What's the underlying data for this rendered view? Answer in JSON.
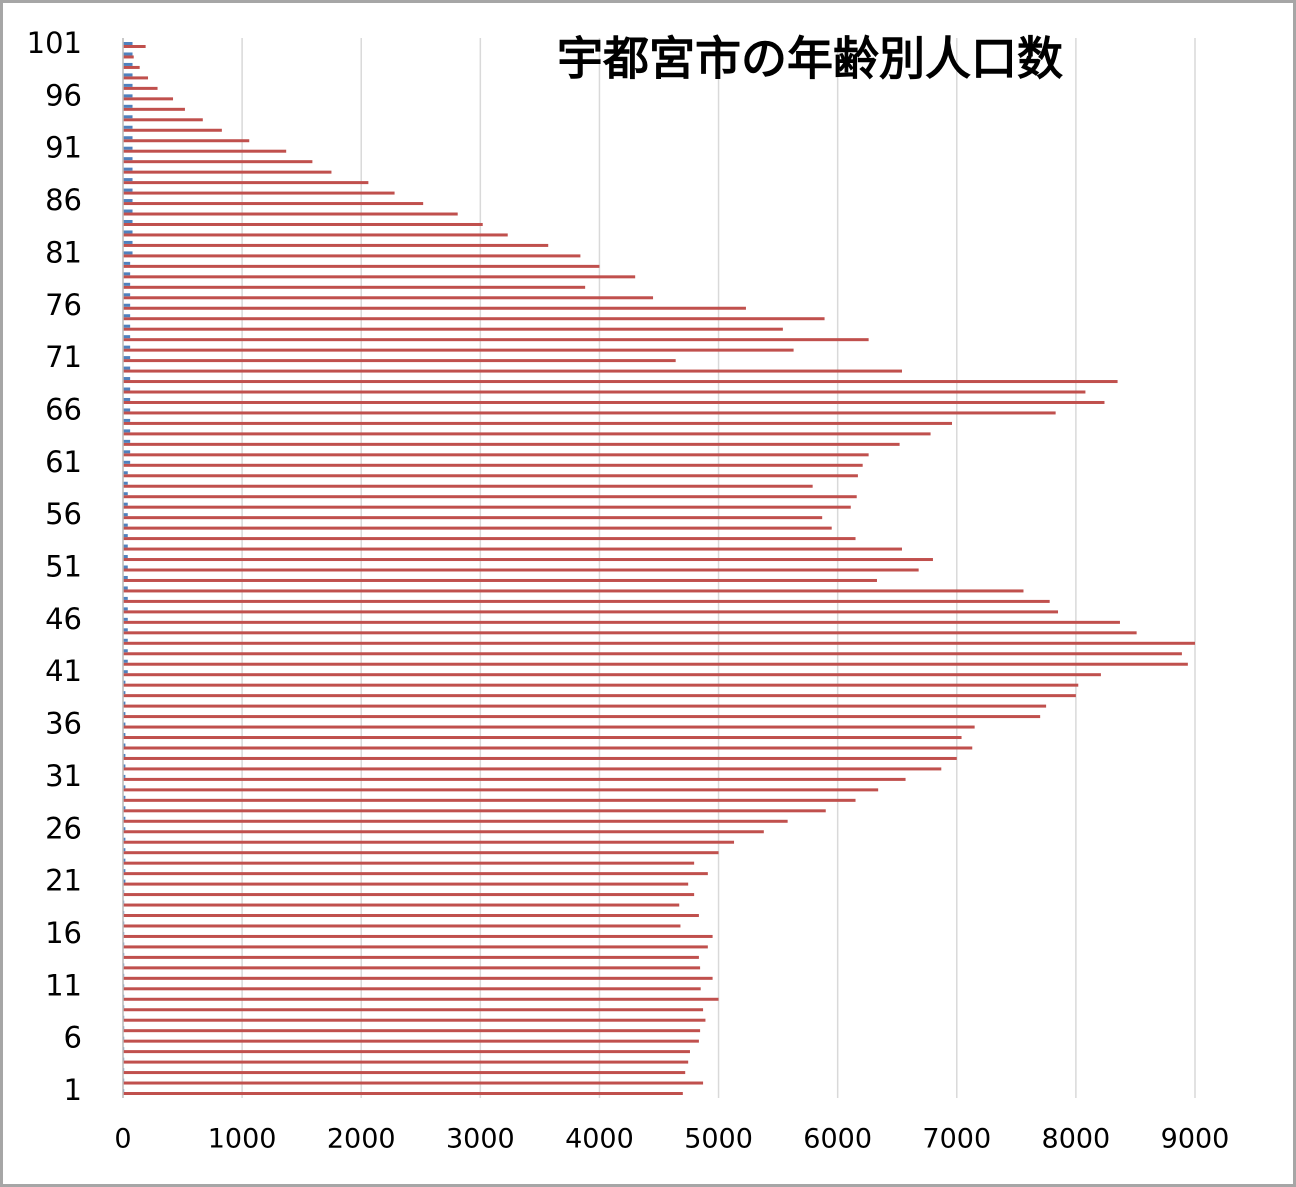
{
  "chart_data": {
    "type": "barh",
    "title": "宇都宮市の年齢別人口数",
    "categories": [
      "1",
      null,
      null,
      null,
      null,
      "6",
      null,
      null,
      null,
      null,
      "11",
      null,
      null,
      null,
      null,
      "16",
      null,
      null,
      null,
      null,
      "21",
      null,
      null,
      null,
      null,
      "26",
      null,
      null,
      null,
      null,
      "31",
      null,
      null,
      null,
      null,
      "36",
      null,
      null,
      null,
      null,
      "41",
      null,
      null,
      null,
      null,
      "46",
      null,
      null,
      null,
      null,
      "51",
      null,
      null,
      null,
      null,
      "56",
      null,
      null,
      null,
      null,
      "61",
      null,
      null,
      null,
      null,
      "66",
      null,
      null,
      null,
      null,
      "71",
      null,
      null,
      null,
      null,
      "76",
      null,
      null,
      null,
      null,
      "81",
      null,
      null,
      null,
      null,
      "86",
      null,
      null,
      null,
      null,
      "91",
      null,
      null,
      null,
      null,
      "96",
      null,
      null,
      null,
      null,
      "101"
    ],
    "series": [
      {
        "color": "#c0504d",
        "values": [
          4700,
          4870,
          4720,
          4745,
          4760,
          4835,
          4845,
          4890,
          4870,
          5000,
          4850,
          4950,
          4845,
          4835,
          4910,
          4950,
          4680,
          4835,
          4670,
          4795,
          4745,
          4910,
          4795,
          5000,
          5130,
          5380,
          5580,
          5900,
          6150,
          6340,
          6570,
          6870,
          7000,
          7130,
          7040,
          7150,
          7700,
          7750,
          8000,
          8020,
          8210,
          8940,
          8890,
          9000,
          8510,
          8370,
          7850,
          7780,
          7560,
          6330,
          6680,
          6800,
          6540,
          6150,
          5950,
          5870,
          6110,
          6160,
          5790,
          6170,
          6210,
          6260,
          6520,
          6780,
          6960,
          7830,
          8240,
          8080,
          8350,
          6540,
          4640,
          5630,
          6260,
          5540,
          5890,
          5230,
          4450,
          3880,
          4300,
          4000,
          3840,
          3570,
          3230,
          3020,
          2810,
          2520,
          2280,
          2060,
          1750,
          1590,
          1370,
          1060,
          830,
          670,
          520,
          420,
          290,
          210,
          140,
          90,
          190
        ]
      },
      {
        "color": "#4f81bd",
        "values": [
          10,
          10,
          10,
          10,
          10,
          10,
          10,
          10,
          10,
          10,
          10,
          10,
          10,
          10,
          10,
          10,
          10,
          10,
          10,
          10,
          20,
          20,
          20,
          20,
          20,
          20,
          20,
          20,
          20,
          20,
          20,
          20,
          20,
          20,
          20,
          20,
          20,
          20,
          20,
          20,
          40,
          40,
          40,
          40,
          40,
          40,
          40,
          40,
          40,
          40,
          40,
          40,
          40,
          40,
          40,
          40,
          40,
          40,
          40,
          40,
          60,
          60,
          60,
          60,
          60,
          60,
          60,
          60,
          60,
          60,
          60,
          60,
          60,
          60,
          60,
          60,
          60,
          60,
          60,
          60,
          80,
          80,
          80,
          80,
          80,
          80,
          80,
          80,
          80,
          80,
          80,
          80,
          80,
          80,
          80,
          80,
          80,
          80,
          80,
          80,
          80
        ]
      }
    ],
    "xlim": [
      0,
      9000
    ],
    "xticks": [
      0,
      1000,
      2000,
      3000,
      4000,
      5000,
      6000,
      7000,
      8000,
      9000
    ],
    "grid": true
  }
}
